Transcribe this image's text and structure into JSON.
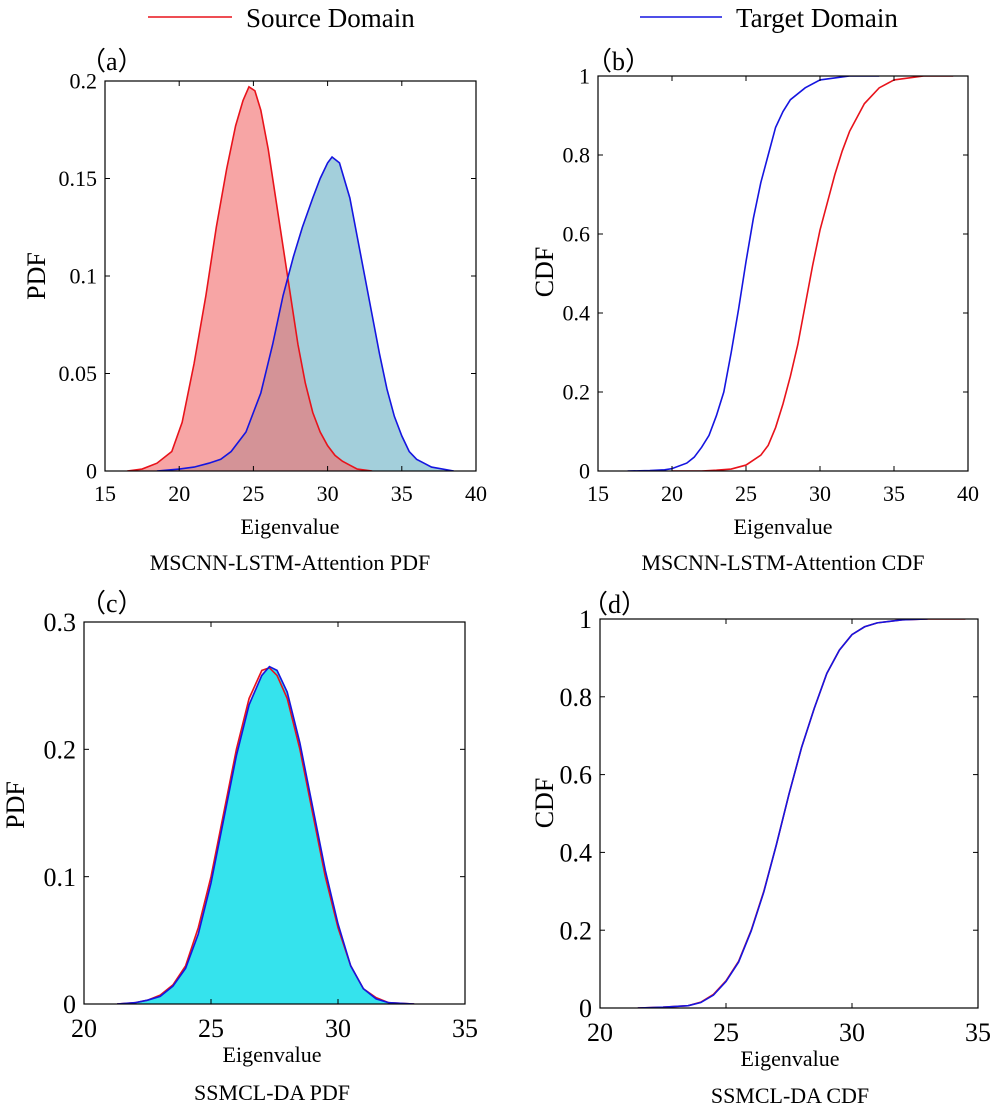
{
  "legend": {
    "source_label": "Source Domain",
    "target_label": "Target Domain",
    "source_color": "#e8131b",
    "target_color": "#1515e0"
  },
  "chart_data": [
    {
      "id": "a",
      "type": "area",
      "panel_label": "（a）",
      "title": "MSCNN-LSTM-Attention PDF",
      "xlabel": "Eigenvalue",
      "ylabel": "PDF",
      "xlim": [
        15,
        40
      ],
      "ylim": [
        0,
        0.2
      ],
      "xticks": [
        15,
        20,
        25,
        30,
        35,
        40
      ],
      "yticks": [
        0,
        0.05,
        0.1,
        0.15,
        0.2
      ],
      "ytick_labels": [
        "0",
        "0.05",
        "0.1",
        "0.15",
        "0.2"
      ],
      "fills": {
        "source": "#f26d6d",
        "target": "#a3cfdb"
      },
      "series": [
        {
          "name": "Source Domain",
          "x": [
            16.5,
            17.5,
            18.5,
            19.5,
            20.2,
            21,
            21.8,
            22.5,
            23.2,
            23.8,
            24.3,
            24.7,
            25.1,
            25.5,
            26,
            26.5,
            27,
            27.5,
            28,
            28.5,
            29,
            29.5,
            30,
            30.5,
            31,
            31.5,
            32,
            33
          ],
          "y": [
            0,
            0.001,
            0.004,
            0.01,
            0.025,
            0.055,
            0.09,
            0.125,
            0.155,
            0.177,
            0.19,
            0.197,
            0.195,
            0.185,
            0.165,
            0.14,
            0.115,
            0.09,
            0.065,
            0.045,
            0.03,
            0.02,
            0.013,
            0.008,
            0.005,
            0.003,
            0.001,
            0
          ]
        },
        {
          "name": "Target Domain",
          "x": [
            18.5,
            20,
            21,
            22,
            22.8,
            23.5,
            24.5,
            25.5,
            26.3,
            27,
            27.7,
            28.3,
            29,
            29.5,
            30,
            30.3,
            30.8,
            31.5,
            32,
            32.5,
            33,
            33.5,
            34,
            34.5,
            35,
            35.5,
            36,
            36.5,
            37,
            38.5
          ],
          "y": [
            0,
            0.001,
            0.002,
            0.004,
            0.006,
            0.01,
            0.02,
            0.04,
            0.065,
            0.09,
            0.11,
            0.125,
            0.14,
            0.15,
            0.158,
            0.161,
            0.158,
            0.14,
            0.12,
            0.1,
            0.08,
            0.06,
            0.042,
            0.028,
            0.018,
            0.01,
            0.006,
            0.004,
            0.002,
            0
          ]
        }
      ]
    },
    {
      "id": "b",
      "type": "line",
      "panel_label": "（b）",
      "title": "MSCNN-LSTM-Attention CDF",
      "xlabel": "Eigenvalue",
      "ylabel": "CDF",
      "xlim": [
        15,
        40
      ],
      "ylim": [
        0,
        1
      ],
      "xticks": [
        15,
        20,
        25,
        30,
        35,
        40
      ],
      "yticks": [
        0,
        0.2,
        0.4,
        0.6,
        0.8,
        1
      ],
      "ytick_labels": [
        "0",
        "0.2",
        "0.4",
        "0.6",
        "0.8",
        "1"
      ],
      "series": [
        {
          "name": "Source Domain",
          "x": [
            20,
            22,
            23,
            24,
            25,
            26,
            26.5,
            27,
            27.5,
            28,
            28.5,
            29,
            29.5,
            30,
            30.5,
            31,
            31.5,
            32,
            33,
            34,
            35,
            36,
            37,
            38,
            39
          ],
          "y": [
            0,
            0,
            0.002,
            0.005,
            0.015,
            0.04,
            0.065,
            0.11,
            0.17,
            0.24,
            0.32,
            0.42,
            0.52,
            0.61,
            0.68,
            0.75,
            0.81,
            0.86,
            0.93,
            0.97,
            0.99,
            0.995,
            1,
            1,
            1
          ]
        },
        {
          "name": "Target Domain",
          "x": [
            17,
            18.5,
            19.5,
            20,
            21,
            21.5,
            22,
            22.5,
            23,
            23.5,
            24,
            24.5,
            25,
            25.5,
            26,
            26.5,
            27,
            27.5,
            28,
            29,
            30,
            31,
            32,
            33,
            34
          ],
          "y": [
            0,
            0.001,
            0.003,
            0.006,
            0.02,
            0.035,
            0.06,
            0.09,
            0.14,
            0.2,
            0.3,
            0.41,
            0.53,
            0.64,
            0.73,
            0.8,
            0.87,
            0.91,
            0.94,
            0.97,
            0.99,
            0.995,
            1,
            1,
            1
          ]
        }
      ]
    },
    {
      "id": "c",
      "type": "area",
      "panel_label": "（c）",
      "title": "SSMCL-DA PDF",
      "xlabel": "Eigenvalue",
      "ylabel": "PDF",
      "xlim": [
        20,
        35
      ],
      "ylim": [
        0,
        0.3
      ],
      "xticks": [
        20,
        25,
        30,
        35
      ],
      "yticks": [
        0,
        0.1,
        0.2,
        0.3
      ],
      "ytick_labels": [
        "0",
        "0.1",
        "0.2",
        "0.3"
      ],
      "fills": {
        "source": "#f26d6d",
        "target": "#2ee8f2"
      },
      "series": [
        {
          "name": "Source Domain",
          "x": [
            21.3,
            22,
            22.5,
            23,
            23.5,
            24,
            24.5,
            25,
            25.5,
            26,
            26.5,
            27,
            27.3,
            27.6,
            28,
            28.5,
            29,
            29.5,
            30,
            30.5,
            31,
            31.5,
            32,
            33
          ],
          "y": [
            0,
            0.001,
            0.003,
            0.007,
            0.015,
            0.03,
            0.06,
            0.1,
            0.15,
            0.2,
            0.24,
            0.262,
            0.264,
            0.258,
            0.24,
            0.2,
            0.15,
            0.1,
            0.06,
            0.03,
            0.012,
            0.005,
            0.001,
            0
          ]
        },
        {
          "name": "Target Domain",
          "x": [
            21.3,
            22,
            22.5,
            23,
            23.5,
            24,
            24.5,
            25,
            25.5,
            26,
            26.5,
            27,
            27.3,
            27.6,
            28,
            28.5,
            29,
            29.5,
            30,
            30.5,
            31,
            31.5,
            32,
            33
          ],
          "y": [
            0,
            0.001,
            0.003,
            0.006,
            0.014,
            0.028,
            0.055,
            0.095,
            0.145,
            0.195,
            0.235,
            0.258,
            0.265,
            0.262,
            0.245,
            0.205,
            0.155,
            0.105,
            0.063,
            0.03,
            0.012,
            0.004,
            0.001,
            0
          ]
        }
      ]
    },
    {
      "id": "d",
      "type": "line",
      "panel_label": "（d）",
      "title": "SSMCL-DA CDF",
      "xlabel": "Eigenvalue",
      "ylabel": "CDF",
      "xlim": [
        20,
        35
      ],
      "ylim": [
        0,
        1
      ],
      "xticks": [
        20,
        25,
        30,
        35
      ],
      "yticks": [
        0,
        0.2,
        0.4,
        0.6,
        0.8,
        1
      ],
      "ytick_labels": [
        "0",
        "0.2",
        "0.4",
        "0.6",
        "0.8",
        "1"
      ],
      "series": [
        {
          "name": "Source Domain",
          "x": [
            21.5,
            22.5,
            23.5,
            24,
            24.5,
            25,
            25.5,
            26,
            26.5,
            27,
            27.5,
            28,
            28.5,
            29,
            29.5,
            30,
            30.5,
            31,
            32,
            33,
            34.5
          ],
          "y": [
            0,
            0.002,
            0.006,
            0.015,
            0.035,
            0.07,
            0.12,
            0.2,
            0.3,
            0.42,
            0.55,
            0.67,
            0.77,
            0.86,
            0.92,
            0.96,
            0.98,
            0.99,
            0.998,
            1,
            1
          ]
        },
        {
          "name": "Target Domain",
          "x": [
            21.5,
            22.5,
            23.5,
            24,
            24.5,
            25,
            25.5,
            26,
            26.5,
            27,
            27.5,
            28,
            28.5,
            29,
            29.5,
            30,
            30.5,
            31,
            32,
            33
          ],
          "y": [
            0,
            0.002,
            0.006,
            0.014,
            0.033,
            0.068,
            0.118,
            0.198,
            0.298,
            0.42,
            0.55,
            0.67,
            0.77,
            0.86,
            0.92,
            0.96,
            0.98,
            0.99,
            0.998,
            1
          ]
        }
      ]
    }
  ]
}
